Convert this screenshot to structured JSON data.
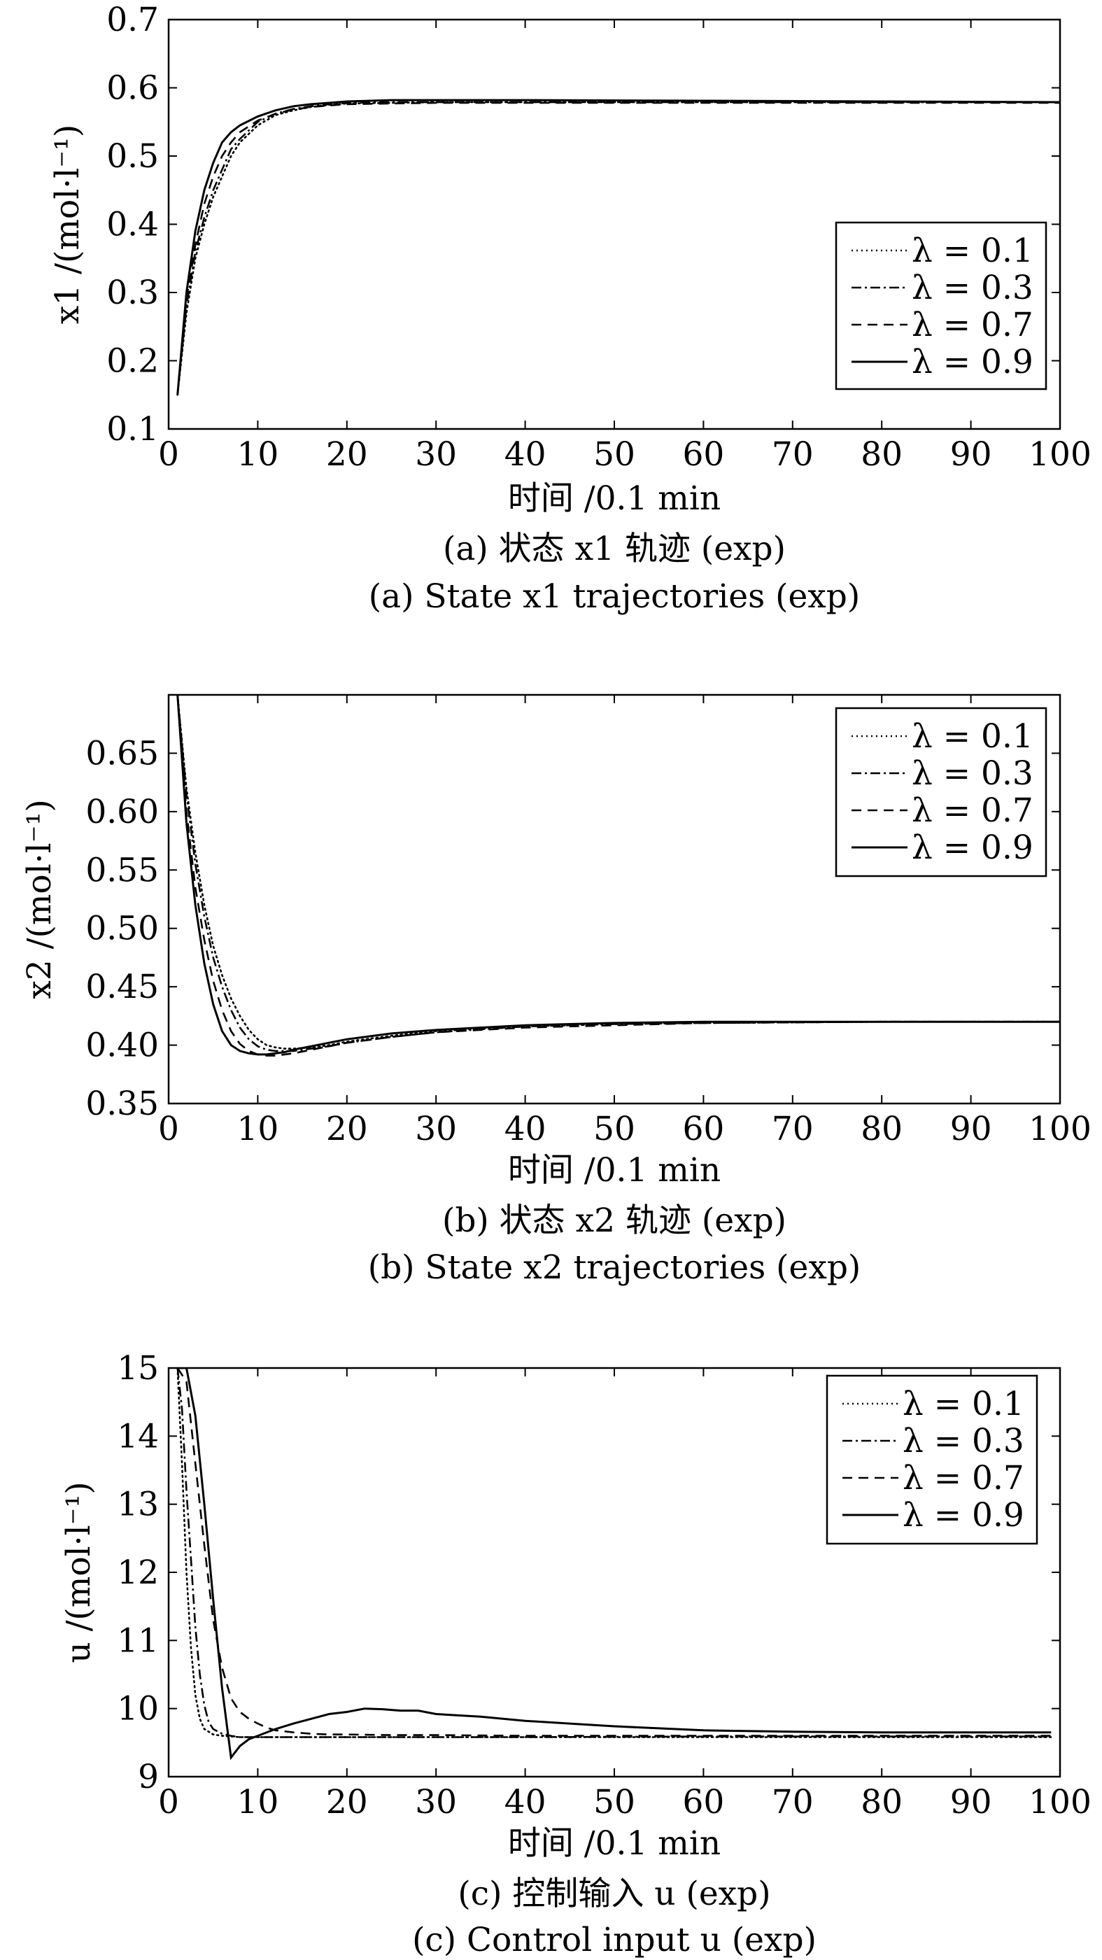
{
  "chart_data": [
    {
      "type": "line",
      "xlabel": "时间 /0.1 min",
      "ylabel": "x1 /(mol·l⁻¹)",
      "caption_cn": "(a) 状态 x1 轨迹 (exp)",
      "caption_en": "(a) State x1 trajectories (exp)",
      "xlim": [
        0,
        100
      ],
      "ylim": [
        0.1,
        0.7
      ],
      "xticks": [
        "0",
        "10",
        "20",
        "30",
        "40",
        "50",
        "60",
        "70",
        "80",
        "90",
        "100"
      ],
      "yticks": [
        "0.1",
        "0.2",
        "0.3",
        "0.4",
        "0.5",
        "0.6",
        "0.7"
      ],
      "legend_position": "right",
      "series": [
        {
          "name": "λ = 0.1",
          "style": "dotted",
          "x": [
            1,
            2,
            3,
            4,
            5,
            6,
            7,
            8,
            10,
            12,
            14,
            16,
            18,
            20,
            25,
            30,
            40,
            60,
            80,
            100
          ],
          "y": [
            0.15,
            0.27,
            0.35,
            0.4,
            0.44,
            0.47,
            0.5,
            0.52,
            0.545,
            0.56,
            0.567,
            0.572,
            0.575,
            0.577,
            0.578,
            0.579,
            0.579,
            0.579,
            0.579,
            0.579
          ]
        },
        {
          "name": "λ = 0.3",
          "style": "dashdot",
          "x": [
            1,
            2,
            3,
            4,
            5,
            6,
            7,
            8,
            10,
            12,
            14,
            16,
            18,
            20,
            25,
            30,
            40,
            60,
            80,
            100
          ],
          "y": [
            0.15,
            0.28,
            0.36,
            0.41,
            0.45,
            0.48,
            0.51,
            0.525,
            0.55,
            0.562,
            0.569,
            0.573,
            0.576,
            0.578,
            0.579,
            0.579,
            0.579,
            0.579,
            0.579,
            0.579
          ]
        },
        {
          "name": "λ = 0.7",
          "style": "dashed",
          "x": [
            1,
            2,
            3,
            4,
            5,
            6,
            7,
            8,
            10,
            12,
            14,
            16,
            18,
            20,
            25,
            30,
            40,
            60,
            80,
            100
          ],
          "y": [
            0.15,
            0.29,
            0.37,
            0.43,
            0.47,
            0.5,
            0.52,
            0.535,
            0.552,
            0.562,
            0.568,
            0.572,
            0.574,
            0.576,
            0.577,
            0.578,
            0.578,
            0.578,
            0.578,
            0.578
          ]
        },
        {
          "name": "λ = 0.9",
          "style": "solid",
          "x": [
            1,
            2,
            3,
            4,
            5,
            6,
            7,
            8,
            10,
            12,
            14,
            16,
            18,
            20,
            25,
            30,
            40,
            60,
            80,
            100
          ],
          "y": [
            0.15,
            0.3,
            0.39,
            0.45,
            0.49,
            0.52,
            0.535,
            0.545,
            0.558,
            0.567,
            0.573,
            0.576,
            0.578,
            0.58,
            0.582,
            0.582,
            0.582,
            0.581,
            0.58,
            0.579
          ]
        }
      ]
    },
    {
      "type": "line",
      "xlabel": "时间 /0.1 min",
      "ylabel": "x2 /(mol·l⁻¹)",
      "caption_cn": "(b) 状态 x2 轨迹 (exp)",
      "caption_en": "(b) State x2 trajectories (exp)",
      "xlim": [
        0,
        100
      ],
      "ylim": [
        0.35,
        0.7
      ],
      "xticks": [
        "0",
        "10",
        "20",
        "30",
        "40",
        "50",
        "60",
        "70",
        "80",
        "90",
        "100"
      ],
      "yticks": [
        "0.35",
        "0.40",
        "0.45",
        "0.50",
        "0.55",
        "0.60",
        "0.65"
      ],
      "legend_position": "top-right",
      "series": [
        {
          "name": "λ = 0.1",
          "style": "dotted",
          "x": [
            1,
            2,
            3,
            4,
            5,
            6,
            7,
            8,
            9,
            10,
            11,
            12,
            13,
            14,
            16,
            18,
            20,
            25,
            30,
            40,
            50,
            60,
            80,
            100
          ],
          "y": [
            0.7,
            0.62,
            0.565,
            0.52,
            0.485,
            0.46,
            0.44,
            0.425,
            0.413,
            0.405,
            0.4,
            0.398,
            0.397,
            0.397,
            0.398,
            0.4,
            0.403,
            0.408,
            0.412,
            0.416,
            0.418,
            0.419,
            0.42,
            0.42
          ]
        },
        {
          "name": "λ = 0.3",
          "style": "dashdot",
          "x": [
            1,
            2,
            3,
            4,
            5,
            6,
            7,
            8,
            9,
            10,
            11,
            12,
            13,
            14,
            16,
            18,
            20,
            25,
            30,
            40,
            50,
            60,
            80,
            100
          ],
          "y": [
            0.7,
            0.615,
            0.555,
            0.51,
            0.475,
            0.45,
            0.43,
            0.415,
            0.405,
            0.399,
            0.396,
            0.395,
            0.395,
            0.395,
            0.397,
            0.399,
            0.402,
            0.407,
            0.411,
            0.416,
            0.418,
            0.419,
            0.42,
            0.42
          ]
        },
        {
          "name": "λ = 0.7",
          "style": "dashed",
          "x": [
            1,
            2,
            3,
            4,
            5,
            6,
            7,
            8,
            9,
            10,
            11,
            12,
            13,
            14,
            16,
            18,
            20,
            25,
            30,
            40,
            50,
            60,
            80,
            100
          ],
          "y": [
            0.7,
            0.6,
            0.535,
            0.49,
            0.455,
            0.43,
            0.412,
            0.401,
            0.395,
            0.392,
            0.391,
            0.391,
            0.392,
            0.393,
            0.396,
            0.399,
            0.402,
            0.407,
            0.411,
            0.415,
            0.417,
            0.419,
            0.42,
            0.42
          ]
        },
        {
          "name": "λ = 0.9",
          "style": "solid",
          "x": [
            1,
            2,
            3,
            4,
            5,
            6,
            7,
            8,
            9,
            10,
            11,
            12,
            13,
            14,
            16,
            18,
            20,
            25,
            30,
            40,
            50,
            60,
            80,
            100
          ],
          "y": [
            0.7,
            0.59,
            0.52,
            0.47,
            0.435,
            0.412,
            0.4,
            0.395,
            0.393,
            0.392,
            0.392,
            0.393,
            0.394,
            0.396,
            0.399,
            0.402,
            0.405,
            0.41,
            0.413,
            0.417,
            0.419,
            0.42,
            0.42,
            0.42
          ]
        }
      ]
    },
    {
      "type": "line",
      "xlabel": "时间 /0.1 min",
      "ylabel": "u /(mol·l⁻¹)",
      "caption_cn": "(c) 控制输入 u (exp)",
      "caption_en": "(c) Control input u (exp)",
      "xlim": [
        0,
        100
      ],
      "ylim": [
        9,
        15
      ],
      "xticks": [
        "0",
        "10",
        "20",
        "30",
        "40",
        "50",
        "60",
        "70",
        "80",
        "90",
        "100"
      ],
      "yticks": [
        "9",
        "10",
        "11",
        "12",
        "13",
        "14",
        "15"
      ],
      "legend_position": "top-right",
      "series": [
        {
          "name": "λ = 0.1",
          "style": "dotted",
          "x": [
            1,
            1.5,
            2,
            2.5,
            3,
            3.5,
            4,
            5,
            6,
            8,
            10,
            20,
            40,
            60,
            80,
            99
          ],
          "y": [
            15.0,
            13.6,
            12.0,
            10.9,
            10.2,
            9.85,
            9.7,
            9.62,
            9.6,
            9.58,
            9.58,
            9.58,
            9.58,
            9.58,
            9.58,
            9.58
          ]
        },
        {
          "name": "λ = 0.3",
          "style": "dashdot",
          "x": [
            1,
            1.5,
            2,
            2.5,
            3,
            3.5,
            4,
            4.5,
            5,
            6,
            7,
            8,
            10,
            20,
            40,
            60,
            80,
            99
          ],
          "y": [
            15.0,
            14.4,
            13.2,
            12.2,
            11.2,
            10.5,
            10.05,
            9.8,
            9.7,
            9.63,
            9.6,
            9.58,
            9.58,
            9.58,
            9.58,
            9.59,
            9.59,
            9.59
          ]
        },
        {
          "name": "λ = 0.7",
          "style": "dashed",
          "x": [
            1,
            2,
            3,
            4,
            5,
            6,
            7,
            8,
            9,
            10,
            11,
            12,
            14,
            16,
            18,
            20,
            25,
            30,
            40,
            60,
            80,
            99
          ],
          "y": [
            15.0,
            14.8,
            13.6,
            12.4,
            11.3,
            10.6,
            10.15,
            9.95,
            9.85,
            9.78,
            9.72,
            9.68,
            9.65,
            9.63,
            9.62,
            9.62,
            9.61,
            9.61,
            9.6,
            9.6,
            9.6,
            9.6
          ]
        },
        {
          "name": "λ = 0.9",
          "style": "solid",
          "x": [
            1,
            2,
            3,
            4,
            5,
            6,
            7,
            8,
            9,
            10,
            12,
            14,
            16,
            18,
            20,
            22,
            24,
            26,
            28,
            30,
            35,
            40,
            45,
            50,
            60,
            70,
            80,
            90,
            99
          ],
          "y": [
            15.0,
            15.0,
            14.3,
            13.0,
            11.6,
            10.3,
            9.28,
            9.45,
            9.55,
            9.6,
            9.7,
            9.78,
            9.85,
            9.92,
            9.95,
            10.0,
            9.99,
            9.97,
            9.97,
            9.92,
            9.88,
            9.82,
            9.78,
            9.74,
            9.68,
            9.66,
            9.65,
            9.65,
            9.65
          ]
        }
      ]
    }
  ]
}
